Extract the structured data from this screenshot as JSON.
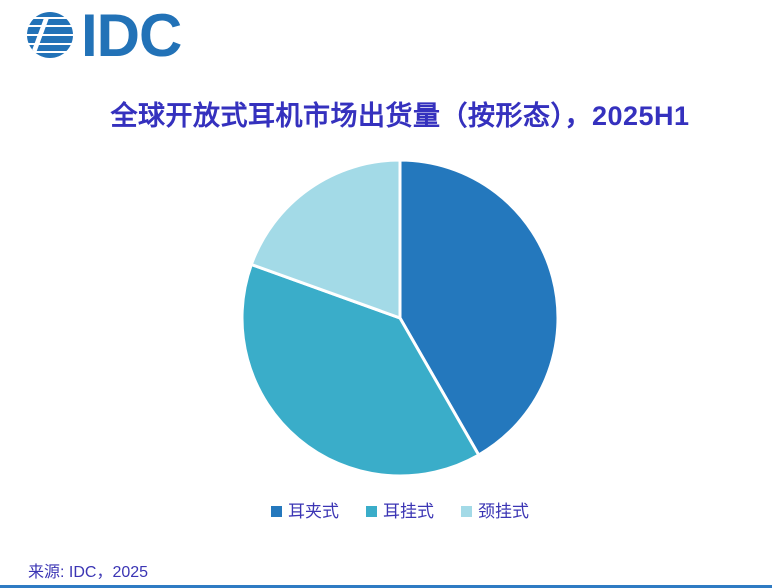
{
  "page": {
    "background": "#ffffff",
    "bottom_line_color": "#2F7BC3"
  },
  "logo": {
    "text": "IDC",
    "color": "#2272B7"
  },
  "title": {
    "text": "全球开放式耳机市场出货量（按形态），2025H1",
    "color": "#3531BE"
  },
  "chart_data": {
    "type": "pie",
    "title": "全球开放式耳机市场出货量（按形态），2025H1",
    "categories": [
      "耳夹式",
      "耳挂式",
      "颈挂式"
    ],
    "values": [
      41.7,
      38.8,
      19.5
    ],
    "value_unit": "% share (estimated from slice angles; no data labels shown)",
    "colors": [
      "#2478BD",
      "#3AADC9",
      "#A3DAE7"
    ],
    "start_angle": "12 o'clock",
    "direction": "clockwise",
    "legend_position": "bottom",
    "slice_border_color": "#ffffff"
  },
  "legend": {
    "text_color": "#3B35B4",
    "items": [
      {
        "label": "耳夹式",
        "color": "#2478BD"
      },
      {
        "label": "耳挂式",
        "color": "#3AADC9"
      },
      {
        "label": "颈挂式",
        "color": "#A3DAE7"
      }
    ]
  },
  "source": {
    "text": "来源: IDC，2025",
    "color": "#3B35B4"
  }
}
